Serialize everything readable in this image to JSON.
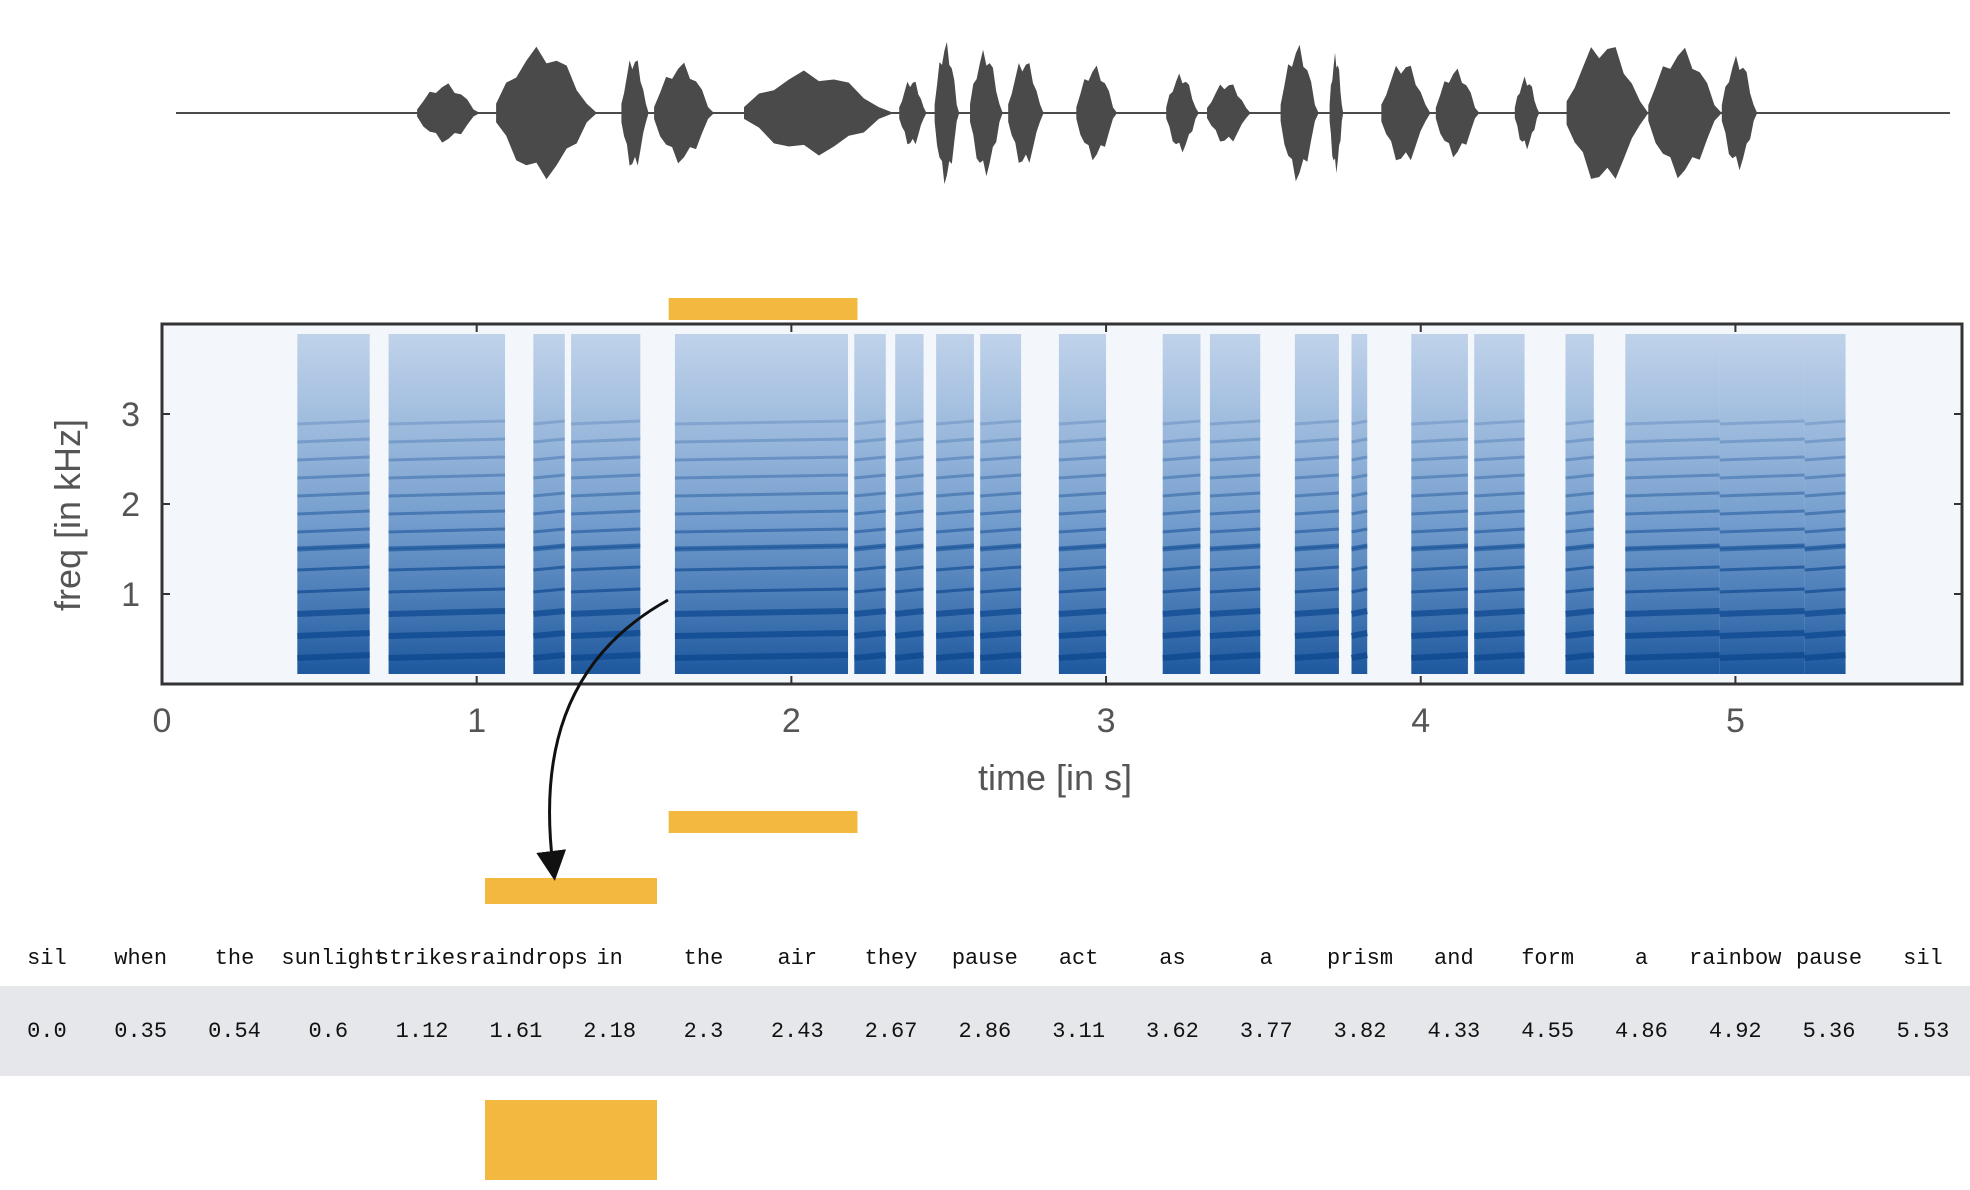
{
  "colors": {
    "waveform": "#4a4a4a",
    "spectrogram_background": "#f3f7fc",
    "spectrogram_energy": "#1d5fa8",
    "highlight": "#f2b83f",
    "time_row_background": "#e6e7ea",
    "arrow": "#111111"
  },
  "chart_data": {
    "type": "heatmap",
    "title": "",
    "xlabel": "time [in s]",
    "ylabel": "freq [in kHz]",
    "xlim": [
      0,
      5.72
    ],
    "ylim": [
      0,
      4
    ],
    "x_ticks": [
      "0",
      "1",
      "2",
      "3",
      "4",
      "5"
    ],
    "y_ticks": [
      "1",
      "2",
      "3"
    ],
    "highlight_interval_s": [
      1.61,
      2.21
    ],
    "voiced_segments_s": [
      [
        0.43,
        0.66
      ],
      [
        0.72,
        1.09
      ],
      [
        1.18,
        1.28
      ],
      [
        1.3,
        1.52
      ],
      [
        1.63,
        2.18
      ],
      [
        2.2,
        2.3
      ],
      [
        2.33,
        2.42
      ],
      [
        2.46,
        2.58
      ],
      [
        2.6,
        2.73
      ],
      [
        2.85,
        3.0
      ],
      [
        3.18,
        3.3
      ],
      [
        3.33,
        3.49
      ],
      [
        3.6,
        3.74
      ],
      [
        3.78,
        3.83
      ],
      [
        3.97,
        4.15
      ],
      [
        4.17,
        4.33
      ],
      [
        4.46,
        4.55
      ],
      [
        4.65,
        4.95
      ],
      [
        4.95,
        5.22
      ],
      [
        5.22,
        5.35
      ]
    ]
  },
  "alignment": {
    "words": [
      "sil",
      "when",
      "the",
      "sunlight",
      "strikes",
      "raindrops",
      "in",
      "the",
      "air",
      "they",
      "pause",
      "act",
      "as",
      "a",
      "prism",
      "and",
      "form",
      "a",
      "rainbow",
      "pause",
      "sil"
    ],
    "times": [
      "0.0",
      "0.35",
      "0.54",
      "0.6",
      "1.12",
      "1.61",
      "2.18",
      "2.3",
      "2.43",
      "2.67",
      "2.86",
      "3.11",
      "3.62",
      "3.77",
      "3.82",
      "4.33",
      "4.55",
      "4.86",
      "4.92",
      "5.36",
      "5.53"
    ],
    "highlighted_word": "raindrops"
  }
}
